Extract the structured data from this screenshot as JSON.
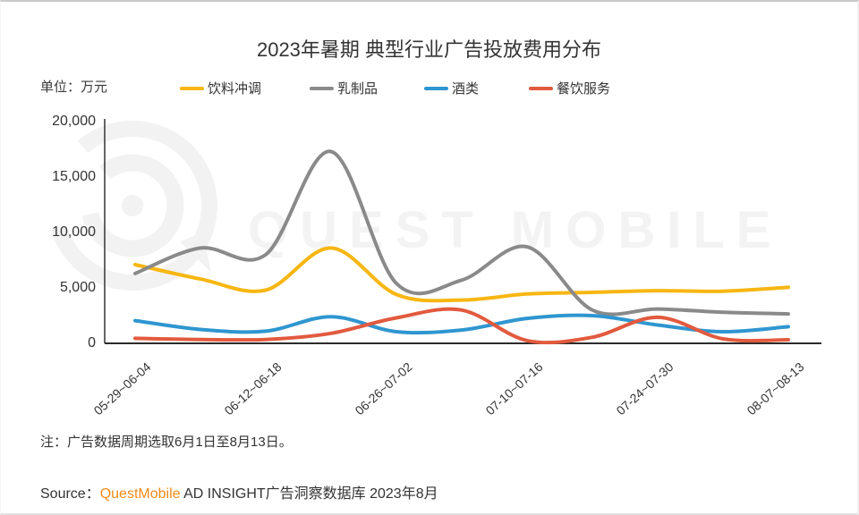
{
  "page": {
    "unit_label": "单位：万元",
    "note": "注：广告数据周期选取6月1日至8月13日。",
    "source": {
      "prefix": "Source：",
      "brand": "QuestMobile",
      "rest": " AD INSIGHT广告洞察数据库 2023年8月"
    },
    "watermark_text": "QUEST MOBILE"
  },
  "chart_data": {
    "type": "line",
    "title": "2023年暑期 典型行业广告投放费用分布",
    "unit": "万元",
    "x_tick_labels": [
      "05-29~06-04",
      "06-12~06-18",
      "06-26~07-02",
      "07-10~07-16",
      "07-24~07-30",
      "08-07~08-13"
    ],
    "x_tick_point_indices": [
      0,
      2,
      4,
      6,
      8,
      10
    ],
    "points_per_series": 11,
    "x_note": "weekly points; only alternate weeks are labeled on the axis",
    "ylim": [
      0,
      20000
    ],
    "yticks": [
      0,
      5000,
      10000,
      15000,
      20000
    ],
    "grid": false,
    "legend_position": "top",
    "smoothed": true,
    "series": [
      {
        "name": "饮料冲调",
        "color": "#F7B612",
        "values": [
          7100,
          5800,
          4800,
          8600,
          4400,
          3900,
          4450,
          4600,
          4750,
          4700,
          5050
        ]
      },
      {
        "name": "乳制品",
        "color": "#8A8A8A",
        "values": [
          6300,
          8600,
          8000,
          17300,
          5400,
          5700,
          8700,
          3000,
          3100,
          2800,
          2650
        ]
      },
      {
        "name": "酒类",
        "color": "#2F96D0",
        "values": [
          2050,
          1250,
          1100,
          2400,
          1050,
          1200,
          2250,
          2500,
          1650,
          1050,
          1500
        ]
      },
      {
        "name": "餐饮服务",
        "color": "#E25A3E",
        "values": [
          450,
          350,
          350,
          900,
          2300,
          3000,
          250,
          550,
          2350,
          400,
          320
        ]
      }
    ],
    "axis_color": "#333333",
    "watermark_color": "#F2F2F2"
  }
}
